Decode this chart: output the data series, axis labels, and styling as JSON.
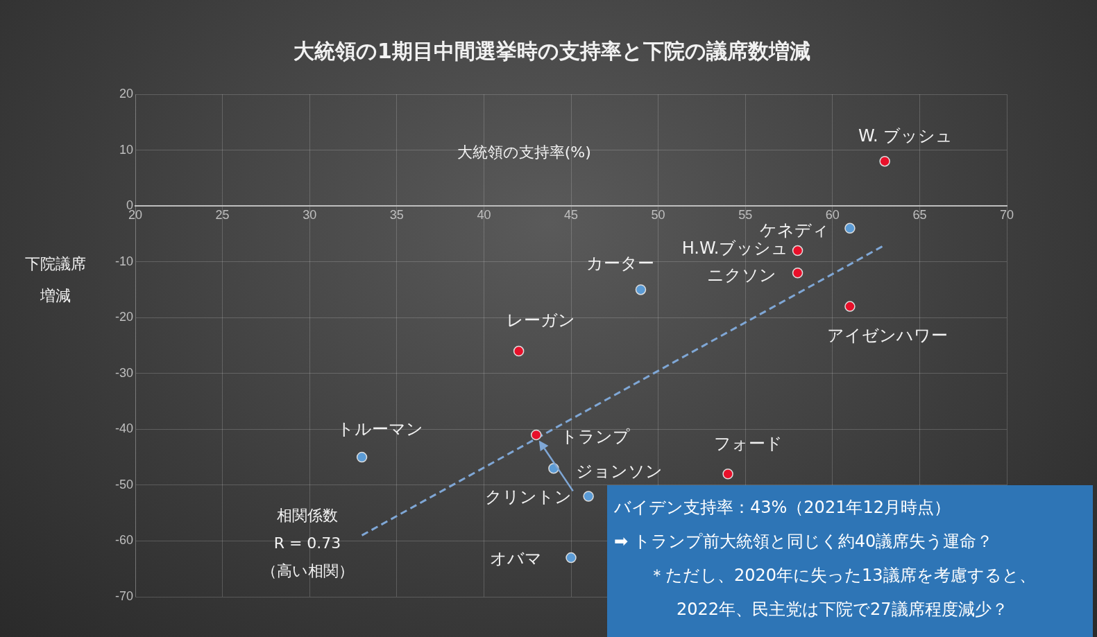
{
  "chart_data": {
    "type": "scatter",
    "title": "大統領の1期目中間選挙時の支持率と下院の議席数増減",
    "xlabel": "大統領の支持率(%)",
    "ylabel": "下院議席増減",
    "xlim": [
      20,
      70
    ],
    "xticks": [
      20,
      25,
      30,
      35,
      40,
      45,
      50,
      55,
      60,
      65,
      70
    ],
    "ylim": [
      -70,
      20
    ],
    "yticks": [
      -70,
      -60,
      -50,
      -40,
      -30,
      -20,
      -10,
      0,
      10,
      20
    ],
    "grid": true,
    "legend": false,
    "marker": "circle",
    "series": [
      {
        "name": "トルーマン",
        "color": "#5b9bd5",
        "x": [
          33
        ],
        "values": [
          -45
        ]
      },
      {
        "name": "レーガン",
        "color": "#e8102a",
        "x": [
          42
        ],
        "values": [
          -26
        ]
      },
      {
        "name": "カーター",
        "color": "#5b9bd5",
        "x": [
          49
        ],
        "values": [
          -15
        ]
      },
      {
        "name": "トランプ",
        "color": "#e8102a",
        "x": [
          43
        ],
        "values": [
          -41
        ]
      },
      {
        "name": "ジョンソン",
        "color": "#5b9bd5",
        "x": [
          44
        ],
        "values": [
          -47
        ]
      },
      {
        "name": "クリントン",
        "color": "#5b9bd5",
        "x": [
          46
        ],
        "values": [
          -52
        ]
      },
      {
        "name": "オバマ",
        "color": "#5b9bd5",
        "x": [
          45
        ],
        "values": [
          -63
        ]
      },
      {
        "name": "フォード",
        "color": "#e8102a",
        "x": [
          54
        ],
        "values": [
          -48
        ]
      },
      {
        "name": "H.W.ブッシュ",
        "color": "#e8102a",
        "x": [
          58
        ],
        "values": [
          -8
        ]
      },
      {
        "name": "ニクソン",
        "color": "#e8102a",
        "x": [
          58
        ],
        "values": [
          -12
        ]
      },
      {
        "name": "ケネディ",
        "color": "#5b9bd5",
        "x": [
          61
        ],
        "values": [
          -4
        ]
      },
      {
        "name": "アイゼンハワー",
        "color": "#e8102a",
        "x": [
          61
        ],
        "values": [
          -18
        ]
      },
      {
        "name": "W. ブッシュ",
        "color": "#e8102a",
        "x": [
          63
        ],
        "values": [
          8
        ]
      },
      {
        "type": "line",
        "color": "#7fa7d6",
        "x": [
          33,
          63
        ],
        "values": [
          -59,
          -7
        ],
        "line_style": "dashed",
        "marker": "none"
      }
    ],
    "annotations": [
      "相関係数",
      "R = 0.73",
      "（高い相関）",
      "バイデン支持率：43%（2021年12月時点）",
      "➡ トランプ前大統領と同じく約40議席失う運命？",
      "＊ただし、2020年に失った13議席を考慮すると、",
      "2022年、民主党は下院で27議席程度減少？"
    ]
  }
}
